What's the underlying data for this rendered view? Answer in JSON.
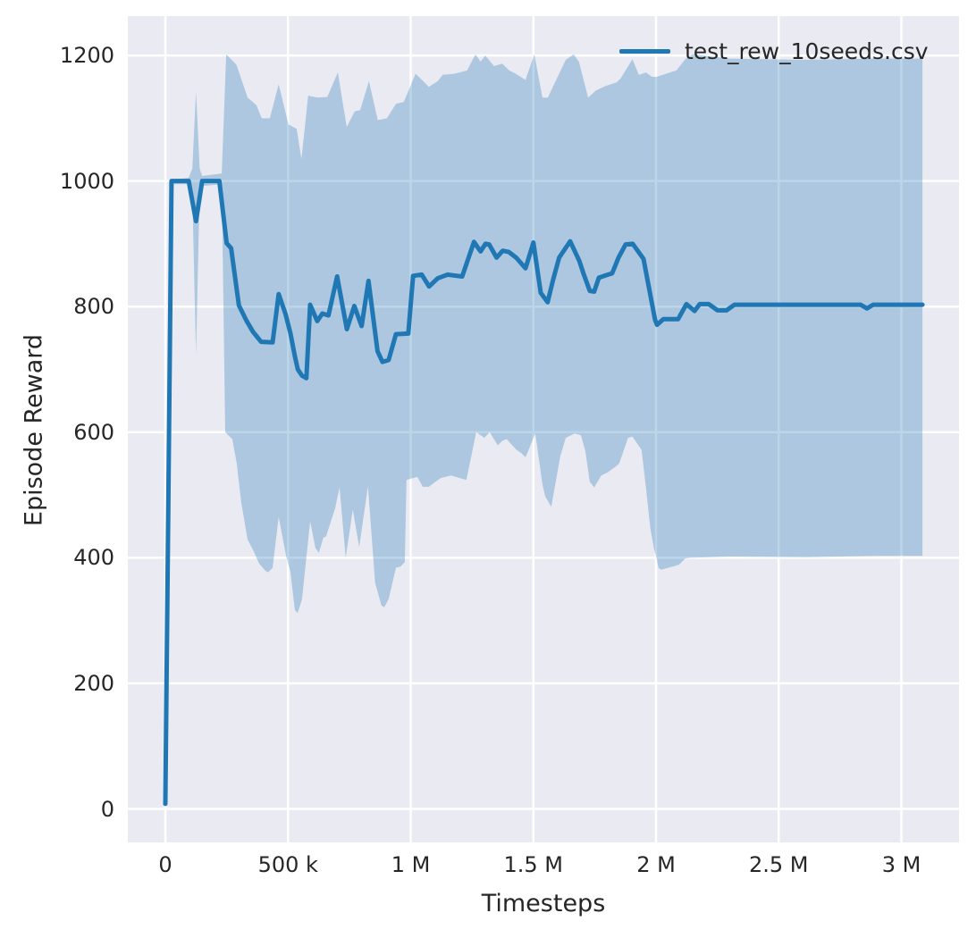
{
  "chart_data": {
    "type": "line",
    "title": "",
    "xlabel": "Timesteps",
    "ylabel": "Episode Reward",
    "grid": true,
    "grid_color": "#ffffff",
    "plot_background": "#eaeaf2",
    "figure_background": "#ffffff",
    "text_color": "#262626",
    "xlim": [
      -153000,
      3235000
    ],
    "ylim": [
      -53,
      1263
    ],
    "x_ticks": [
      {
        "value": 0,
        "label": "0"
      },
      {
        "value": 500000,
        "label": "500 k"
      },
      {
        "value": 1000000,
        "label": "1 M"
      },
      {
        "value": 1500000,
        "label": "1.5 M"
      },
      {
        "value": 2000000,
        "label": "2 M"
      },
      {
        "value": 2500000,
        "label": "2.5 M"
      },
      {
        "value": 3000000,
        "label": "3 M"
      }
    ],
    "y_ticks": [
      {
        "value": 0,
        "label": "0"
      },
      {
        "value": 200,
        "label": "200"
      },
      {
        "value": 400,
        "label": "400"
      },
      {
        "value": 600,
        "label": "600"
      },
      {
        "value": 800,
        "label": "800"
      },
      {
        "value": 1000,
        "label": "1000"
      },
      {
        "value": 1200,
        "label": "1200"
      }
    ],
    "legend": {
      "location": "upper right"
    },
    "series": [
      {
        "name": "test_rew_10seeds.csv",
        "color": "#1f77b4",
        "band_color": "rgba(31,119,180,0.3)",
        "mean": [
          [
            0,
            8
          ],
          [
            25000,
            1000
          ],
          [
            95000,
            1000
          ],
          [
            125000,
            936
          ],
          [
            150000,
            1000
          ],
          [
            220000,
            1000
          ],
          [
            250000,
            901
          ],
          [
            268000,
            893
          ],
          [
            300000,
            802
          ],
          [
            330000,
            778
          ],
          [
            357000,
            760
          ],
          [
            390000,
            744
          ],
          [
            437000,
            743
          ],
          [
            462000,
            820
          ],
          [
            490000,
            788
          ],
          [
            510000,
            757
          ],
          [
            528000,
            721
          ],
          [
            540000,
            700
          ],
          [
            557000,
            690
          ],
          [
            575000,
            686
          ],
          [
            590000,
            803
          ],
          [
            619000,
            777
          ],
          [
            640000,
            789
          ],
          [
            665000,
            786
          ],
          [
            700000,
            848
          ],
          [
            740000,
            764
          ],
          [
            770000,
            801
          ],
          [
            800000,
            769
          ],
          [
            828000,
            841
          ],
          [
            865000,
            729
          ],
          [
            885000,
            712
          ],
          [
            910000,
            715
          ],
          [
            940000,
            756
          ],
          [
            990000,
            757
          ],
          [
            1010000,
            849
          ],
          [
            1045000,
            851
          ],
          [
            1075000,
            832
          ],
          [
            1110000,
            845
          ],
          [
            1150000,
            851
          ],
          [
            1210000,
            848
          ],
          [
            1258000,
            903
          ],
          [
            1285000,
            888
          ],
          [
            1305000,
            900
          ],
          [
            1320000,
            899
          ],
          [
            1350000,
            878
          ],
          [
            1375000,
            889
          ],
          [
            1400000,
            887
          ],
          [
            1430000,
            878
          ],
          [
            1468000,
            861
          ],
          [
            1500000,
            902
          ],
          [
            1530000,
            822
          ],
          [
            1558000,
            807
          ],
          [
            1580000,
            842
          ],
          [
            1605000,
            878
          ],
          [
            1650000,
            904
          ],
          [
            1687000,
            873
          ],
          [
            1705000,
            852
          ],
          [
            1730000,
            825
          ],
          [
            1748000,
            824
          ],
          [
            1767000,
            846
          ],
          [
            1796000,
            850
          ],
          [
            1821000,
            853
          ],
          [
            1847000,
            878
          ],
          [
            1876000,
            899
          ],
          [
            1905000,
            900
          ],
          [
            1949000,
            876
          ],
          [
            1996000,
            779
          ],
          [
            2004000,
            771
          ],
          [
            2030000,
            780
          ],
          [
            2090000,
            780
          ],
          [
            2124000,
            804
          ],
          [
            2157000,
            793
          ],
          [
            2178000,
            804
          ],
          [
            2215000,
            804
          ],
          [
            2251000,
            794
          ],
          [
            2287000,
            794
          ],
          [
            2320000,
            803
          ],
          [
            2500000,
            803
          ],
          [
            2834000,
            803
          ],
          [
            2860000,
            797
          ],
          [
            2885000,
            803
          ],
          [
            3086000,
            803
          ]
        ],
        "band_upper": [
          [
            0,
            8
          ],
          [
            25000,
            1002
          ],
          [
            95000,
            1005
          ],
          [
            110000,
            1020
          ],
          [
            125000,
            1143
          ],
          [
            140000,
            1020
          ],
          [
            150000,
            1008
          ],
          [
            230000,
            1012
          ],
          [
            248000,
            1202
          ],
          [
            290000,
            1185
          ],
          [
            335000,
            1133
          ],
          [
            371000,
            1121
          ],
          [
            393000,
            1100
          ],
          [
            426000,
            1100
          ],
          [
            462000,
            1154
          ],
          [
            502000,
            1090
          ],
          [
            535000,
            1083
          ],
          [
            555000,
            1035
          ],
          [
            582000,
            1136
          ],
          [
            620000,
            1133
          ],
          [
            660000,
            1134
          ],
          [
            703000,
            1173
          ],
          [
            739000,
            1086
          ],
          [
            772000,
            1111
          ],
          [
            794000,
            1113
          ],
          [
            830000,
            1159
          ],
          [
            866000,
            1097
          ],
          [
            903000,
            1100
          ],
          [
            940000,
            1123
          ],
          [
            972000,
            1126
          ],
          [
            1020000,
            1171
          ],
          [
            1074000,
            1150
          ],
          [
            1110000,
            1159
          ],
          [
            1130000,
            1169
          ],
          [
            1180000,
            1171
          ],
          [
            1230000,
            1176
          ],
          [
            1264000,
            1202
          ],
          [
            1285000,
            1190
          ],
          [
            1304000,
            1200
          ],
          [
            1340000,
            1183
          ],
          [
            1373000,
            1187
          ],
          [
            1402000,
            1176
          ],
          [
            1428000,
            1171
          ],
          [
            1468000,
            1161
          ],
          [
            1504000,
            1202
          ],
          [
            1537000,
            1133
          ],
          [
            1559000,
            1133
          ],
          [
            1632000,
            1193
          ],
          [
            1664000,
            1202
          ],
          [
            1686000,
            1190
          ],
          [
            1723000,
            1133
          ],
          [
            1755000,
            1144
          ],
          [
            1792000,
            1151
          ],
          [
            1839000,
            1157
          ],
          [
            1857000,
            1164
          ],
          [
            1904000,
            1194
          ],
          [
            1930000,
            1169
          ],
          [
            1959000,
            1173
          ],
          [
            1984000,
            1166
          ],
          [
            2003000,
            1166
          ],
          [
            2057000,
            1173
          ],
          [
            2083000,
            1176
          ],
          [
            2119000,
            1194
          ],
          [
            2148000,
            1202
          ],
          [
            2300000,
            1195
          ],
          [
            2600000,
            1193
          ],
          [
            2900000,
            1195
          ],
          [
            3086000,
            1195
          ]
        ],
        "band_lower": [
          [
            0,
            8
          ],
          [
            25000,
            995
          ],
          [
            95000,
            995
          ],
          [
            110000,
            980
          ],
          [
            125000,
            723
          ],
          [
            140000,
            985
          ],
          [
            150000,
            992
          ],
          [
            230000,
            995
          ],
          [
            244000,
            600
          ],
          [
            273000,
            589
          ],
          [
            291000,
            550
          ],
          [
            309000,
            489
          ],
          [
            335000,
            429
          ],
          [
            357000,
            413
          ],
          [
            382000,
            391
          ],
          [
            408000,
            379
          ],
          [
            419000,
            377
          ],
          [
            437000,
            384
          ],
          [
            462000,
            465
          ],
          [
            492000,
            403
          ],
          [
            510000,
            377
          ],
          [
            528000,
            317
          ],
          [
            539000,
            312
          ],
          [
            557000,
            334
          ],
          [
            590000,
            458
          ],
          [
            612000,
            415
          ],
          [
            626000,
            408
          ],
          [
            644000,
            432
          ],
          [
            655000,
            434
          ],
          [
            692000,
            479
          ],
          [
            710000,
            512
          ],
          [
            735000,
            400
          ],
          [
            764000,
            477
          ],
          [
            790000,
            417
          ],
          [
            826000,
            514
          ],
          [
            855000,
            360
          ],
          [
            881000,
            324
          ],
          [
            892000,
            321
          ],
          [
            910000,
            334
          ],
          [
            940000,
            384
          ],
          [
            958000,
            386
          ],
          [
            976000,
            393
          ],
          [
            983000,
            524
          ],
          [
            1027000,
            529
          ],
          [
            1049000,
            513
          ],
          [
            1074000,
            513
          ],
          [
            1122000,
            527
          ],
          [
            1165000,
            531
          ],
          [
            1183000,
            529
          ],
          [
            1227000,
            524
          ],
          [
            1267000,
            600
          ],
          [
            1300000,
            591
          ],
          [
            1322000,
            600
          ],
          [
            1355000,
            579
          ],
          [
            1373000,
            586
          ],
          [
            1391000,
            589
          ],
          [
            1431000,
            572
          ],
          [
            1450000,
            567
          ],
          [
            1468000,
            560
          ],
          [
            1508000,
            598
          ],
          [
            1537000,
            517
          ],
          [
            1548000,
            498
          ],
          [
            1573000,
            481
          ],
          [
            1610000,
            562
          ],
          [
            1632000,
            591
          ],
          [
            1668000,
            598
          ],
          [
            1694000,
            595
          ],
          [
            1712000,
            570
          ],
          [
            1730000,
            521
          ],
          [
            1748000,
            512
          ],
          [
            1777000,
            531
          ],
          [
            1803000,
            536
          ],
          [
            1828000,
            543
          ],
          [
            1850000,
            550
          ],
          [
            1886000,
            591
          ],
          [
            1904000,
            593
          ],
          [
            1941000,
            572
          ],
          [
            1959000,
            512
          ],
          [
            1977000,
            446
          ],
          [
            1992000,
            414
          ],
          [
            2003000,
            399
          ],
          [
            2010000,
            384
          ],
          [
            2021000,
            381
          ],
          [
            2068000,
            386
          ],
          [
            2094000,
            389
          ],
          [
            2119000,
            399
          ],
          [
            2137000,
            400
          ],
          [
            2300000,
            402
          ],
          [
            2600000,
            401
          ],
          [
            2900000,
            403
          ],
          [
            3086000,
            403
          ]
        ]
      }
    ]
  }
}
